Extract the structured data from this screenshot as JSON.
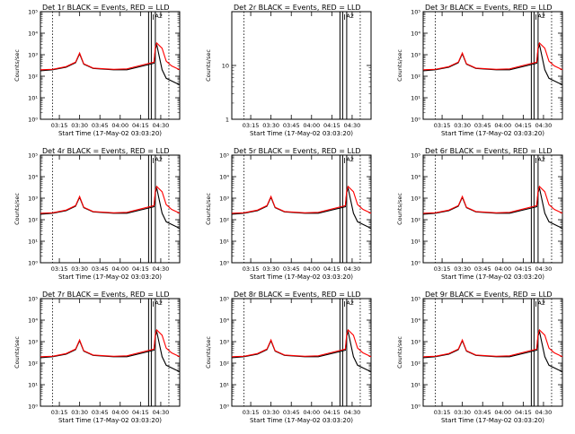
{
  "figure": {
    "x_label": "Start Time (17-May-02 03:03:20)",
    "y_label": "Counts/sec",
    "x_ticks": [
      "03:15",
      "03:30",
      "03:45",
      "04:00",
      "04:15",
      "04:30"
    ],
    "x_tick_values_min": [
      15,
      30,
      45,
      60,
      75,
      90
    ],
    "x_range_min": [
      1,
      104
    ],
    "marker_ticks": [
      "A2",
      "A3"
    ],
    "colors": {
      "events": "#000000",
      "lld": "#ff0000"
    }
  },
  "chart_data": [
    {
      "type": "line",
      "title": "Det 1r BLACK = Events, RED = LLD",
      "y_scale": "log",
      "ylim": [
        1,
        100000
      ],
      "y_ticks": [
        "10⁰",
        "10¹",
        "10²",
        "10³",
        "10⁴",
        "10⁵"
      ],
      "y_tick_values": [
        1,
        10,
        100,
        1000,
        10000,
        100000
      ],
      "series": [
        {
          "name": "Events",
          "x": [
            1,
            10,
            20,
            27,
            30,
            33,
            40,
            55,
            65,
            85,
            86,
            87,
            91,
            94,
            98,
            104
          ],
          "y": [
            180,
            200,
            260,
            420,
            1100,
            360,
            230,
            200,
            200,
            400,
            1800,
            3000,
            200,
            80,
            60,
            40
          ]
        },
        {
          "name": "LLD",
          "x": [
            1,
            10,
            20,
            27,
            30,
            33,
            40,
            55,
            65,
            85,
            86,
            87,
            91,
            94,
            98,
            104
          ],
          "y": [
            200,
            210,
            280,
            450,
            1200,
            380,
            240,
            210,
            220,
            450,
            2200,
            3500,
            2000,
            500,
            300,
            200
          ]
        }
      ],
      "vertical_lines_min": [
        10,
        81,
        83,
        86,
        96
      ]
    },
    {
      "type": "line",
      "title": "Det 2r BLACK = Events, RED = LLD",
      "y_scale": "log",
      "ylim": [
        1,
        100
      ],
      "y_ticks": [
        "1",
        "10"
      ],
      "y_tick_values": [
        1,
        10
      ],
      "series": [],
      "vertical_lines_min": [
        10,
        81,
        83,
        86,
        96
      ]
    },
    {
      "type": "line",
      "title": "Det 3r BLACK = Events, RED = LLD",
      "y_scale": "log",
      "ylim": [
        1,
        100000
      ],
      "y_ticks": [
        "10⁰",
        "10¹",
        "10²",
        "10³",
        "10⁴",
        "10⁵"
      ],
      "y_tick_values": [
        1,
        10,
        100,
        1000,
        10000,
        100000
      ],
      "series": [
        {
          "name": "Events",
          "x": [
            1,
            10,
            20,
            27,
            30,
            33,
            40,
            55,
            65,
            85,
            86,
            87,
            91,
            94,
            98,
            104
          ],
          "y": [
            180,
            200,
            260,
            420,
            1100,
            360,
            230,
            200,
            200,
            400,
            1800,
            3000,
            200,
            80,
            60,
            40
          ]
        },
        {
          "name": "LLD",
          "x": [
            1,
            10,
            20,
            27,
            30,
            33,
            40,
            55,
            65,
            85,
            86,
            87,
            91,
            94,
            98,
            104
          ],
          "y": [
            200,
            210,
            280,
            450,
            1200,
            380,
            240,
            210,
            220,
            450,
            2200,
            3500,
            2000,
            500,
            300,
            200
          ]
        }
      ],
      "vertical_lines_min": [
        10,
        81,
        83,
        86,
        96
      ]
    },
    {
      "type": "line",
      "title": "Det 4r BLACK = Events, RED = LLD",
      "y_scale": "log",
      "ylim": [
        1,
        100000
      ],
      "y_ticks": [
        "10⁰",
        "10¹",
        "10²",
        "10³",
        "10⁴",
        "10⁵"
      ],
      "y_tick_values": [
        1,
        10,
        100,
        1000,
        10000,
        100000
      ],
      "series": [
        {
          "name": "Events",
          "x": [
            1,
            10,
            20,
            27,
            30,
            33,
            40,
            55,
            65,
            85,
            86,
            87,
            91,
            94,
            98,
            104
          ],
          "y": [
            180,
            200,
            260,
            420,
            1100,
            360,
            230,
            200,
            200,
            400,
            1800,
            3000,
            200,
            80,
            60,
            40
          ]
        },
        {
          "name": "LLD",
          "x": [
            1,
            10,
            20,
            27,
            30,
            33,
            40,
            55,
            65,
            85,
            86,
            87,
            91,
            94,
            98,
            104
          ],
          "y": [
            200,
            210,
            280,
            450,
            1200,
            380,
            240,
            210,
            220,
            450,
            2200,
            3500,
            2000,
            500,
            300,
            200
          ]
        }
      ],
      "vertical_lines_min": [
        10,
        81,
        83,
        86,
        96
      ]
    },
    {
      "type": "line",
      "title": "Det 5r BLACK = Events, RED = LLD",
      "y_scale": "log",
      "ylim": [
        1,
        100000
      ],
      "y_ticks": [
        "10⁰",
        "10¹",
        "10²",
        "10³",
        "10⁴",
        "10⁵"
      ],
      "y_tick_values": [
        1,
        10,
        100,
        1000,
        10000,
        100000
      ],
      "series": [
        {
          "name": "Events",
          "x": [
            1,
            10,
            20,
            27,
            30,
            33,
            40,
            55,
            65,
            85,
            86,
            87,
            91,
            94,
            98,
            104
          ],
          "y": [
            180,
            200,
            260,
            420,
            1100,
            360,
            230,
            200,
            200,
            400,
            1800,
            3000,
            200,
            80,
            60,
            40
          ]
        },
        {
          "name": "LLD",
          "x": [
            1,
            10,
            20,
            27,
            30,
            33,
            40,
            55,
            65,
            85,
            86,
            87,
            91,
            94,
            98,
            104
          ],
          "y": [
            200,
            210,
            280,
            450,
            1200,
            380,
            240,
            210,
            220,
            450,
            2200,
            3500,
            2000,
            500,
            300,
            200
          ]
        }
      ],
      "vertical_lines_min": [
        10,
        81,
        83,
        86,
        96
      ]
    },
    {
      "type": "line",
      "title": "Det 6r BLACK = Events, RED = LLD",
      "y_scale": "log",
      "ylim": [
        1,
        100000
      ],
      "y_ticks": [
        "10⁰",
        "10¹",
        "10²",
        "10³",
        "10⁴",
        "10⁵"
      ],
      "y_tick_values": [
        1,
        10,
        100,
        1000,
        10000,
        100000
      ],
      "series": [
        {
          "name": "Events",
          "x": [
            1,
            10,
            20,
            27,
            30,
            33,
            40,
            55,
            65,
            85,
            86,
            87,
            91,
            94,
            98,
            104
          ],
          "y": [
            180,
            200,
            260,
            420,
            1100,
            360,
            230,
            200,
            200,
            400,
            1800,
            3000,
            200,
            80,
            60,
            40
          ]
        },
        {
          "name": "LLD",
          "x": [
            1,
            10,
            20,
            27,
            30,
            33,
            40,
            55,
            65,
            85,
            86,
            87,
            91,
            94,
            98,
            104
          ],
          "y": [
            200,
            210,
            280,
            450,
            1200,
            380,
            240,
            210,
            220,
            450,
            2200,
            3500,
            2000,
            500,
            300,
            200
          ]
        }
      ],
      "vertical_lines_min": [
        10,
        81,
        83,
        86,
        96
      ]
    },
    {
      "type": "line",
      "title": "Det 7r BLACK = Events, RED = LLD",
      "y_scale": "log",
      "ylim": [
        1,
        100000
      ],
      "y_ticks": [
        "10⁰",
        "10¹",
        "10²",
        "10³",
        "10⁴",
        "10⁵"
      ],
      "y_tick_values": [
        1,
        10,
        100,
        1000,
        10000,
        100000
      ],
      "series": [
        {
          "name": "Events",
          "x": [
            1,
            10,
            20,
            27,
            30,
            33,
            40,
            55,
            65,
            85,
            86,
            87,
            91,
            94,
            98,
            104
          ],
          "y": [
            180,
            200,
            260,
            420,
            1100,
            360,
            230,
            200,
            200,
            400,
            1800,
            3000,
            200,
            80,
            60,
            40
          ]
        },
        {
          "name": "LLD",
          "x": [
            1,
            10,
            20,
            27,
            30,
            33,
            40,
            55,
            65,
            85,
            86,
            87,
            91,
            94,
            98,
            104
          ],
          "y": [
            200,
            210,
            280,
            450,
            1200,
            380,
            240,
            210,
            220,
            450,
            2200,
            3500,
            2000,
            500,
            300,
            200
          ]
        }
      ],
      "vertical_lines_min": [
        10,
        81,
        83,
        86,
        96
      ]
    },
    {
      "type": "line",
      "title": "Det 8r BLACK = Events, RED = LLD",
      "y_scale": "log",
      "ylim": [
        1,
        100000
      ],
      "y_ticks": [
        "10⁰",
        "10¹",
        "10²",
        "10³",
        "10⁴",
        "10⁵"
      ],
      "y_tick_values": [
        1,
        10,
        100,
        1000,
        10000,
        100000
      ],
      "series": [
        {
          "name": "Events",
          "x": [
            1,
            10,
            20,
            27,
            30,
            33,
            40,
            55,
            65,
            85,
            86,
            87,
            91,
            94,
            98,
            104
          ],
          "y": [
            180,
            200,
            260,
            420,
            1100,
            360,
            230,
            200,
            200,
            400,
            1800,
            3000,
            200,
            80,
            60,
            40
          ]
        },
        {
          "name": "LLD",
          "x": [
            1,
            10,
            20,
            27,
            30,
            33,
            40,
            55,
            65,
            85,
            86,
            87,
            91,
            94,
            98,
            104
          ],
          "y": [
            200,
            210,
            280,
            450,
            1200,
            380,
            240,
            210,
            220,
            450,
            2200,
            3500,
            2000,
            500,
            300,
            200
          ]
        }
      ],
      "vertical_lines_min": [
        10,
        81,
        83,
        86,
        96
      ]
    },
    {
      "type": "line",
      "title": "Det 9r BLACK = Events, RED = LLD",
      "y_scale": "log",
      "ylim": [
        1,
        100000
      ],
      "y_ticks": [
        "10⁰",
        "10¹",
        "10²",
        "10³",
        "10⁴",
        "10⁵"
      ],
      "y_tick_values": [
        1,
        10,
        100,
        1000,
        10000,
        100000
      ],
      "series": [
        {
          "name": "Events",
          "x": [
            1,
            10,
            20,
            27,
            30,
            33,
            40,
            55,
            65,
            85,
            86,
            87,
            91,
            94,
            98,
            104
          ],
          "y": [
            180,
            200,
            260,
            420,
            1100,
            360,
            230,
            200,
            200,
            400,
            1800,
            3000,
            200,
            80,
            60,
            40
          ]
        },
        {
          "name": "LLD",
          "x": [
            1,
            10,
            20,
            27,
            30,
            33,
            40,
            55,
            65,
            85,
            86,
            87,
            91,
            94,
            98,
            104
          ],
          "y": [
            200,
            210,
            280,
            450,
            1200,
            380,
            240,
            210,
            220,
            450,
            2200,
            3500,
            2000,
            500,
            300,
            200
          ]
        }
      ],
      "vertical_lines_min": [
        10,
        81,
        83,
        86,
        96
      ]
    }
  ]
}
